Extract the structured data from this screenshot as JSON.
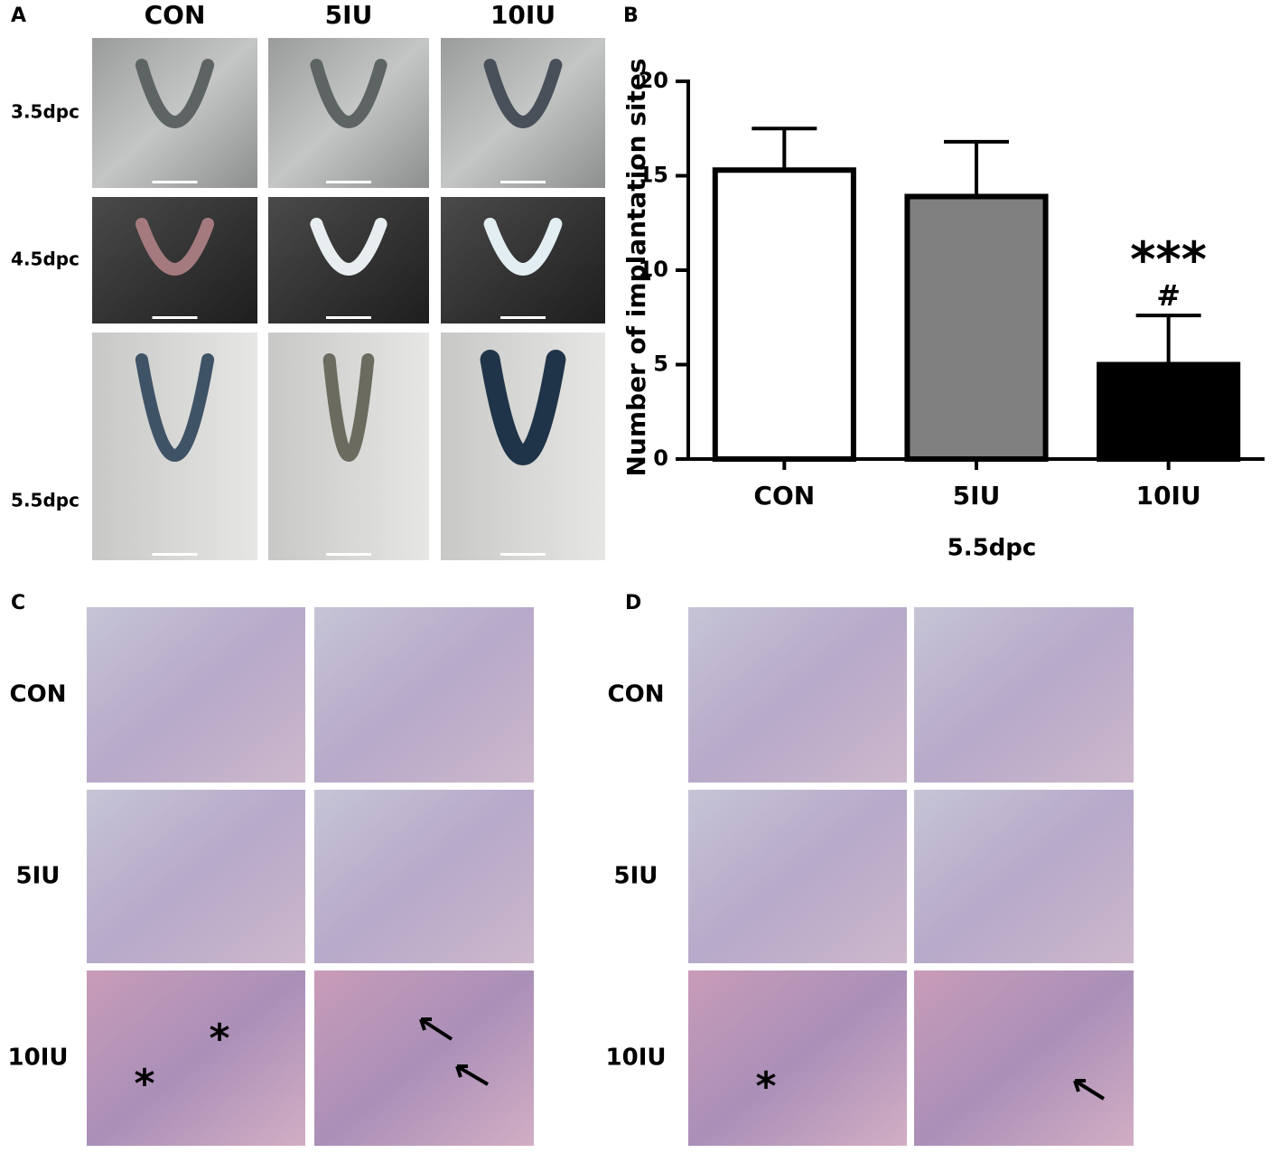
{
  "panels": {
    "A": {
      "label": "A",
      "columns": [
        "CON",
        "5IU",
        "10IU"
      ],
      "rows": [
        "3.5dpc",
        "4.5dpc",
        "5.5dpc"
      ]
    },
    "C": {
      "label": "C",
      "rows": [
        "CON",
        "5IU",
        "10IU"
      ],
      "annotations": [
        "*",
        "*"
      ]
    },
    "D": {
      "label": "D",
      "rows": [
        "CON",
        "5IU",
        "10IU"
      ],
      "annotations": [
        "*"
      ]
    }
  },
  "chart_data": {
    "type": "bar",
    "label": "B",
    "ylabel": "Number of implantation sites",
    "xlabel": "5.5dpc",
    "categories": [
      "CON",
      "5IU",
      "10IU"
    ],
    "values": [
      15.3,
      13.9,
      5.0
    ],
    "errors": [
      2.2,
      2.9,
      2.6
    ],
    "colors": [
      "#ffffff",
      "#808080",
      "#000000"
    ],
    "ylim": [
      0,
      20
    ],
    "yticks": [
      0,
      5,
      10,
      15,
      20
    ],
    "annotations": [
      {
        "text": "***",
        "category": "10IU"
      },
      {
        "text": "#",
        "category": "10IU"
      }
    ]
  }
}
